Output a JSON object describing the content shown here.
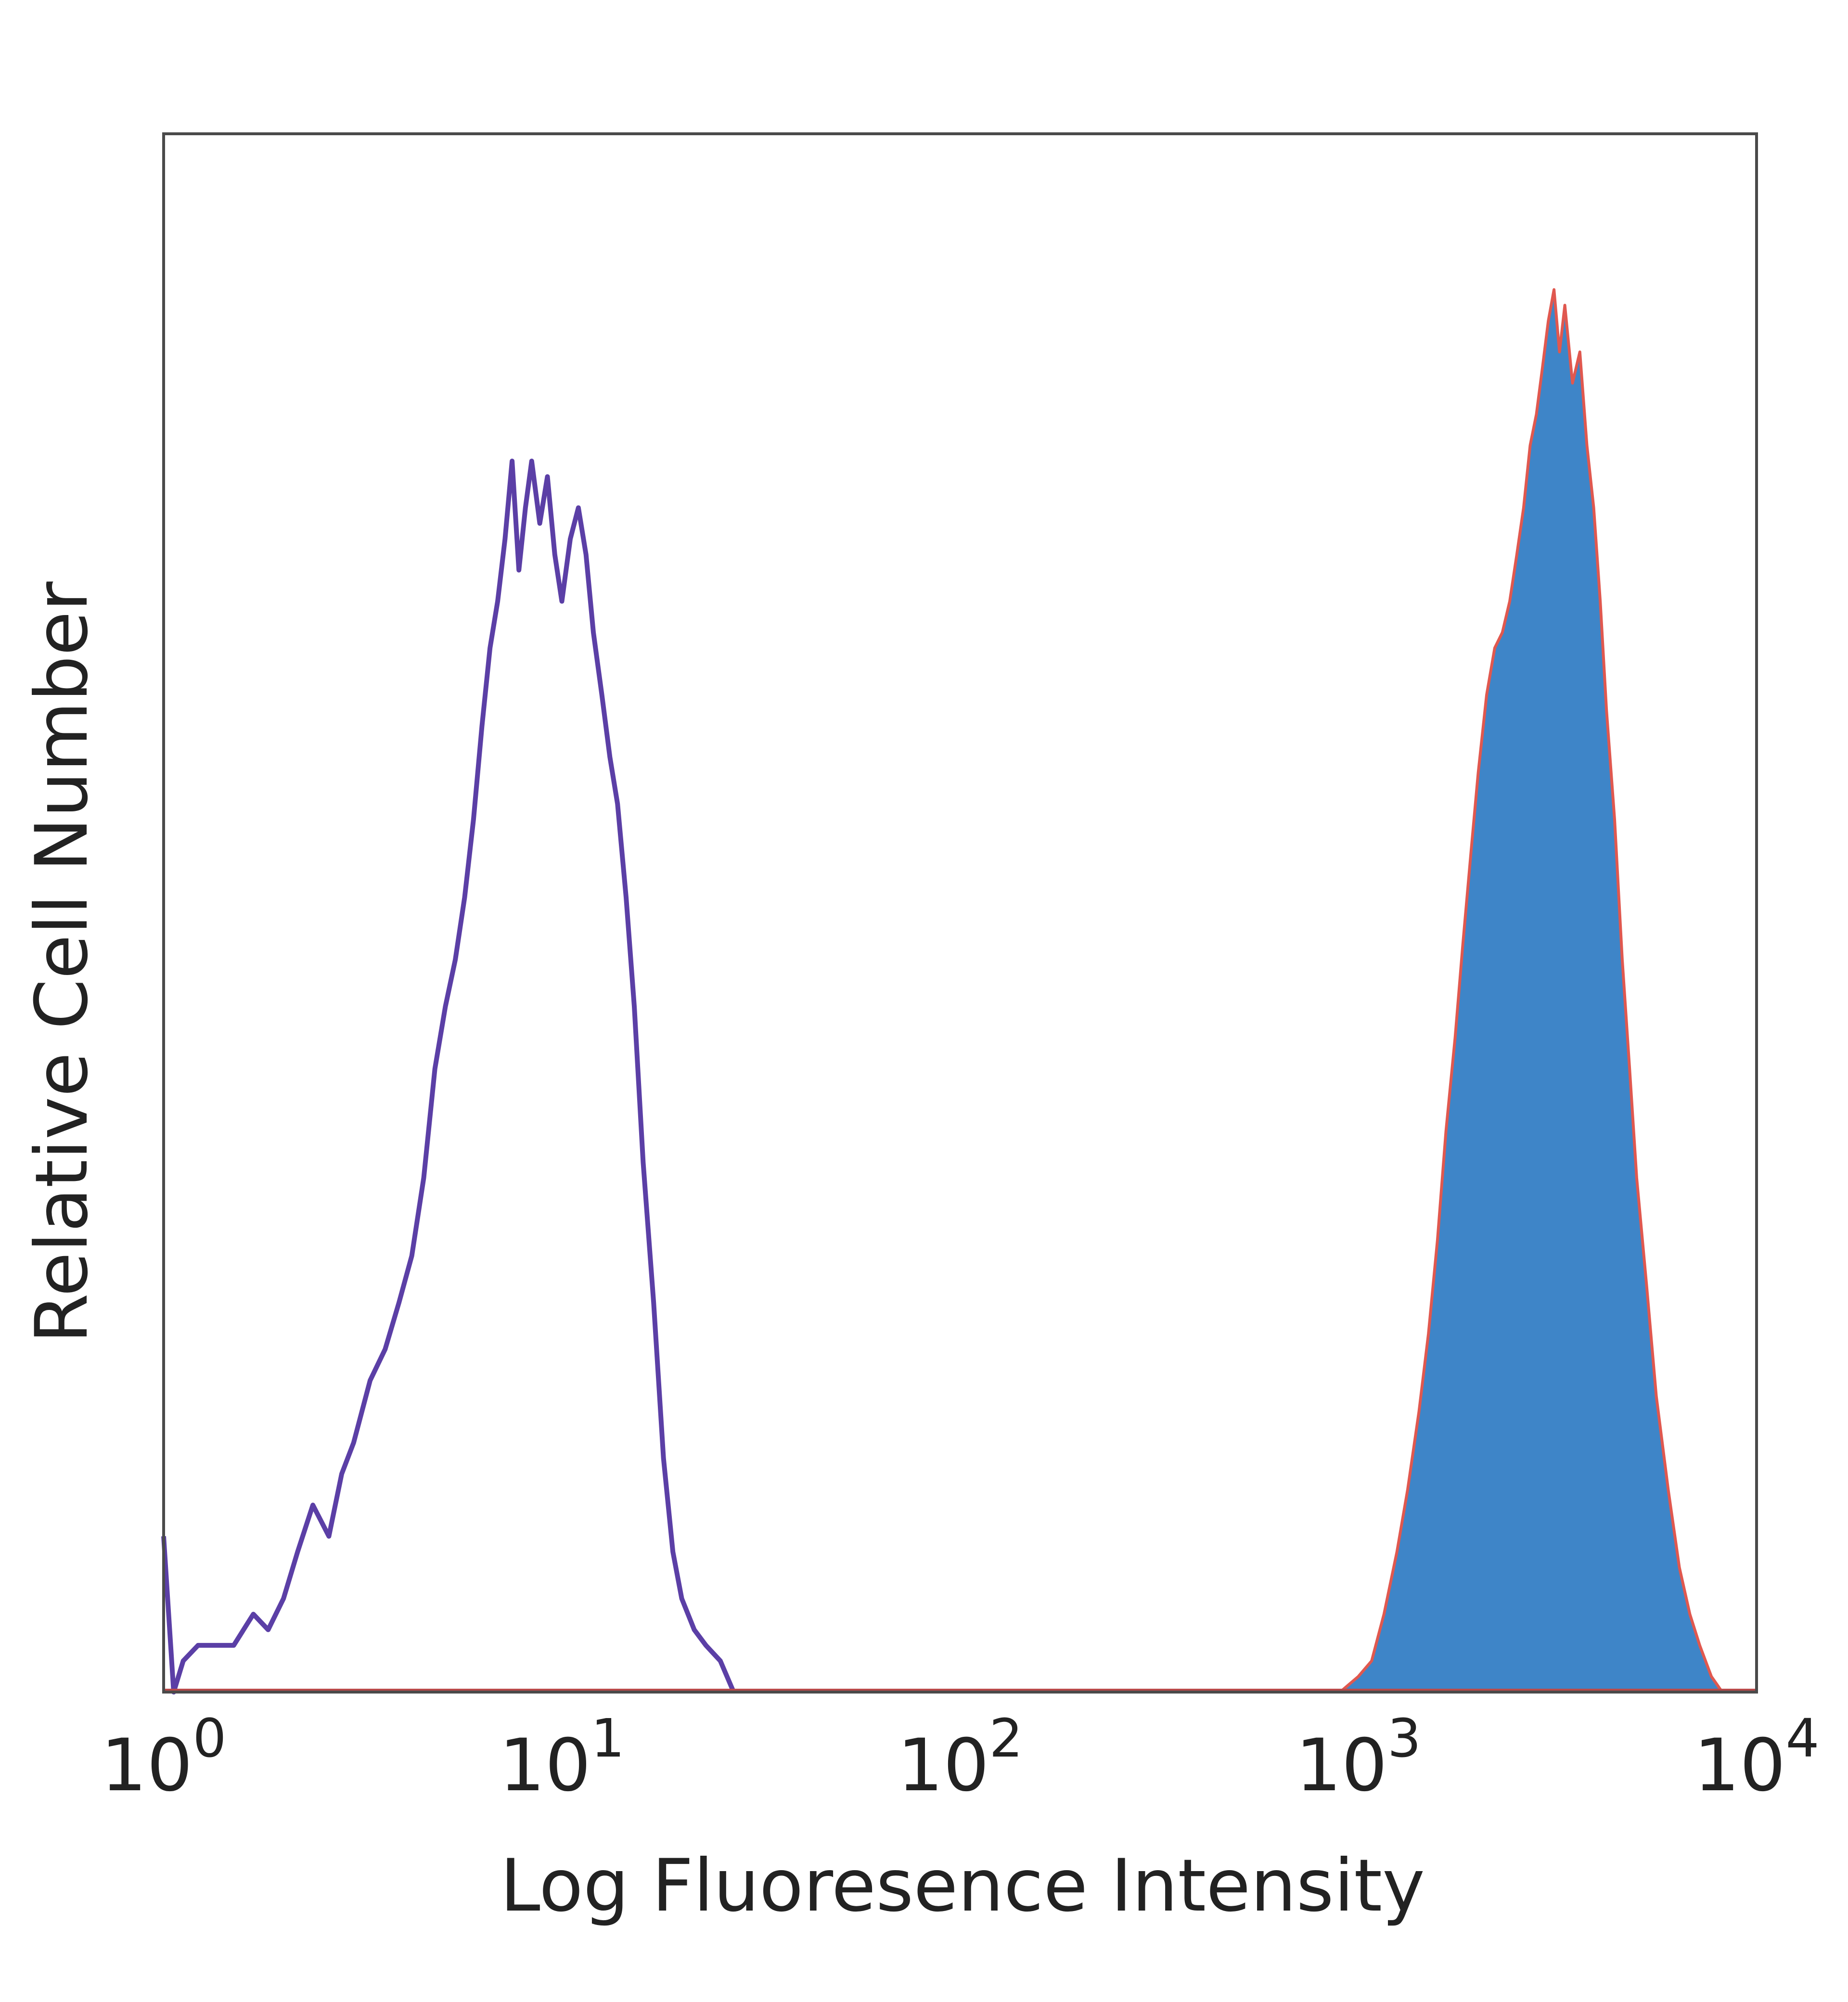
{
  "chart_data": {
    "type": "area",
    "title": "",
    "xlabel": "Log Fluoresence Intensity",
    "ylabel": "Relative Cell Number",
    "x_scale": "log",
    "xlim": [
      1,
      10000
    ],
    "ylim": [
      0,
      100
    ],
    "grid": false,
    "legend": "none",
    "x_ticks": [
      {
        "value": 1,
        "base": "10",
        "exp": "0"
      },
      {
        "value": 10,
        "base": "10",
        "exp": "1"
      },
      {
        "value": 100,
        "base": "10",
        "exp": "2"
      },
      {
        "value": 1000,
        "base": "10",
        "exp": "3"
      },
      {
        "value": 10000,
        "base": "10",
        "exp": "4"
      }
    ],
    "series": [
      {
        "style": "outline",
        "color": "#5b3fa6",
        "x": [
          1,
          1.06,
          1.12,
          1.22,
          1.33,
          1.5,
          1.68,
          1.83,
          2.0,
          2.17,
          2.37,
          2.6,
          2.8,
          3.0,
          3.3,
          3.6,
          3.9,
          4.2,
          4.5,
          4.8,
          5.1,
          5.4,
          5.7,
          6.0,
          6.3,
          6.6,
          6.9,
          7.2,
          7.5,
          7.8,
          8.1,
          8.4,
          8.8,
          9.2,
          9.6,
          10.0,
          10.5,
          11.0,
          11.5,
          12.0,
          12.6,
          13.2,
          13.8,
          14.5,
          15.2,
          16.0,
          17.0,
          18.0,
          19.0,
          20.0,
          21.5,
          23.0,
          25.0,
          27.0
        ],
        "y": [
          10,
          0,
          2,
          3,
          3,
          3,
          5,
          4,
          6,
          9,
          12,
          10,
          14,
          16,
          20,
          22,
          25,
          28,
          33,
          40,
          44,
          47,
          51,
          56,
          62,
          67,
          70,
          74,
          79,
          72,
          76,
          79,
          75,
          78,
          73,
          70,
          74,
          76,
          73,
          68,
          64,
          60,
          57,
          51,
          44,
          34,
          25,
          15,
          9,
          6,
          4,
          3,
          2,
          0
        ]
      },
      {
        "style": "filled",
        "color": "#3e85c8",
        "outline_color": "#e0584f",
        "x": [
          900,
          1000,
          1080,
          1160,
          1250,
          1330,
          1420,
          1500,
          1580,
          1660,
          1750,
          1830,
          1920,
          2000,
          2100,
          2200,
          2300,
          2400,
          2500,
          2600,
          2700,
          2800,
          2900,
          3000,
          3100,
          3200,
          3300,
          3450,
          3600,
          3750,
          3900,
          4050,
          4200,
          4400,
          4600,
          4800,
          5000,
          5300,
          5600,
          6000,
          6400,
          6800,
          7200,
          7700,
          8200
        ],
        "y": [
          0,
          1,
          2,
          5,
          9,
          13,
          18,
          23,
          29,
          36,
          42,
          48,
          54,
          59,
          64,
          67,
          68,
          70,
          73,
          76,
          80,
          82,
          85,
          88,
          90,
          86,
          89,
          84,
          86,
          80,
          76,
          70,
          63,
          56,
          47,
          40,
          33,
          26,
          19,
          13,
          8,
          5,
          3,
          1,
          0
        ]
      }
    ]
  }
}
